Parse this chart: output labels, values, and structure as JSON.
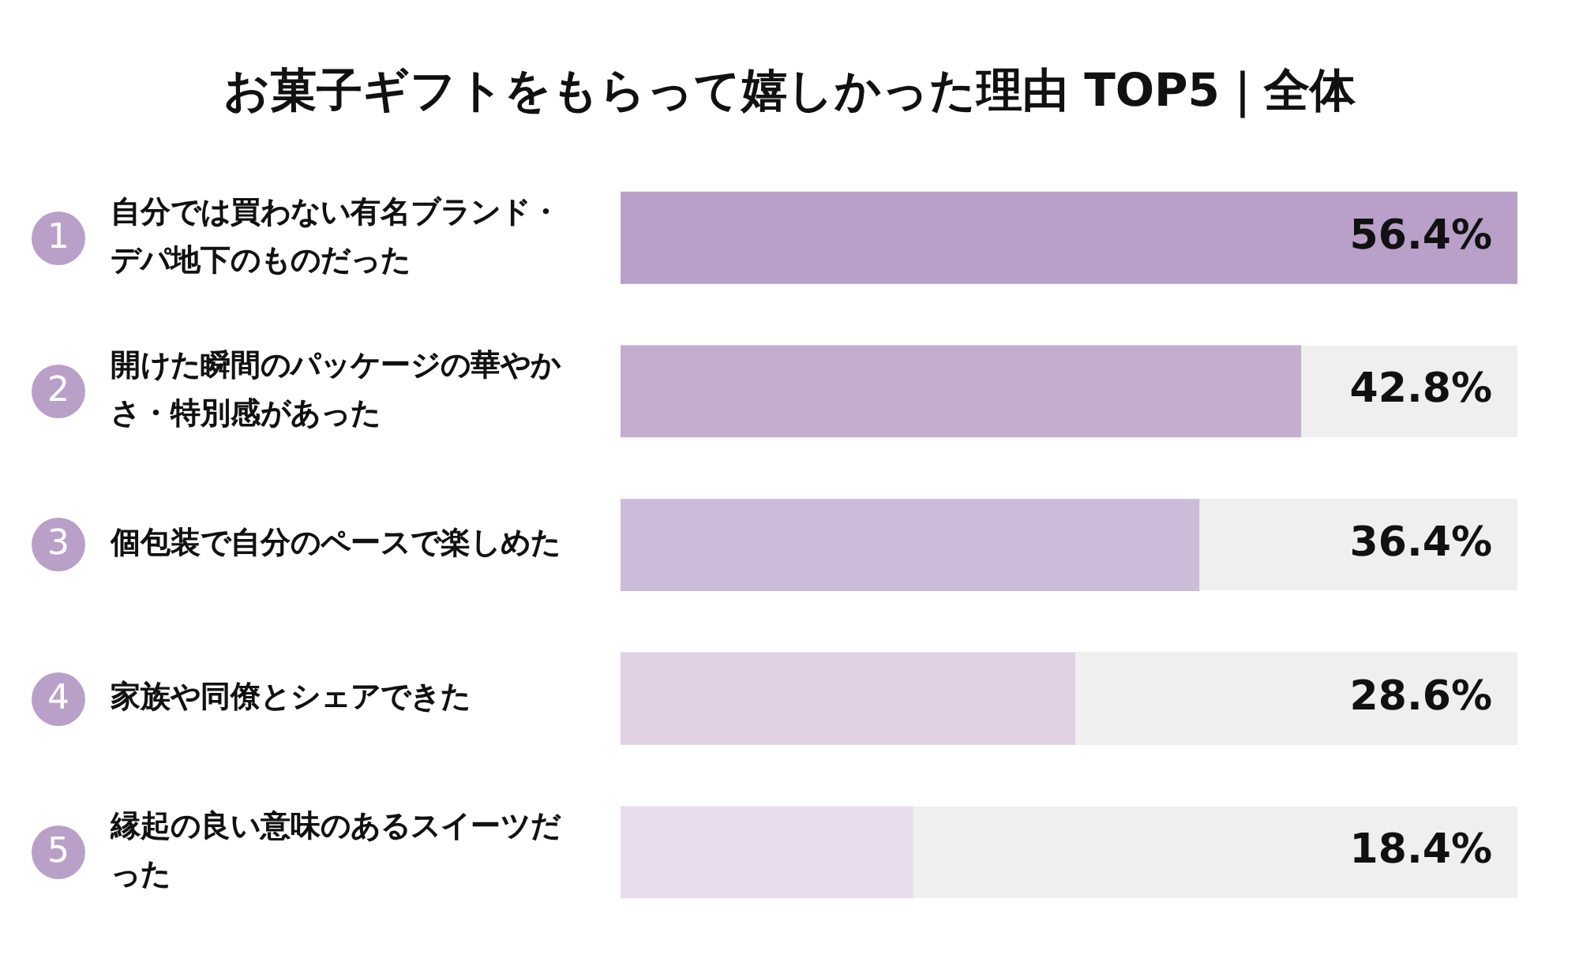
{
  "chart_data": {
    "type": "bar",
    "orientation": "horizontal",
    "title": "お菓子ギフトをもらって嬉しかった理由 TOP5｜全体",
    "categories": [
      "自分では買わない有名ブランド・デパ地下のものだった",
      "開けた瞬間のパッケージの華やかさ・特別感があった",
      "個包装で自分のペースで楽しめた",
      "家族や同僚とシェアできた",
      "縁起の良い意味のあるスイーツだった"
    ],
    "values": [
      56.4,
      42.8,
      36.4,
      28.6,
      18.4
    ],
    "colors": [
      "#b9a0c8",
      "#c3aed0",
      "#cdbcd9",
      "#dfd0e4",
      "#e8dded"
    ],
    "value_labels": [
      "56.4%",
      "42.8%",
      "36.4%",
      "28.6%",
      "18.4%"
    ],
    "annotations": [
      "1",
      "2",
      "3",
      "4",
      "5"
    ],
    "xlim": [
      0,
      56.4
    ],
    "grid": false,
    "legend": false
  }
}
